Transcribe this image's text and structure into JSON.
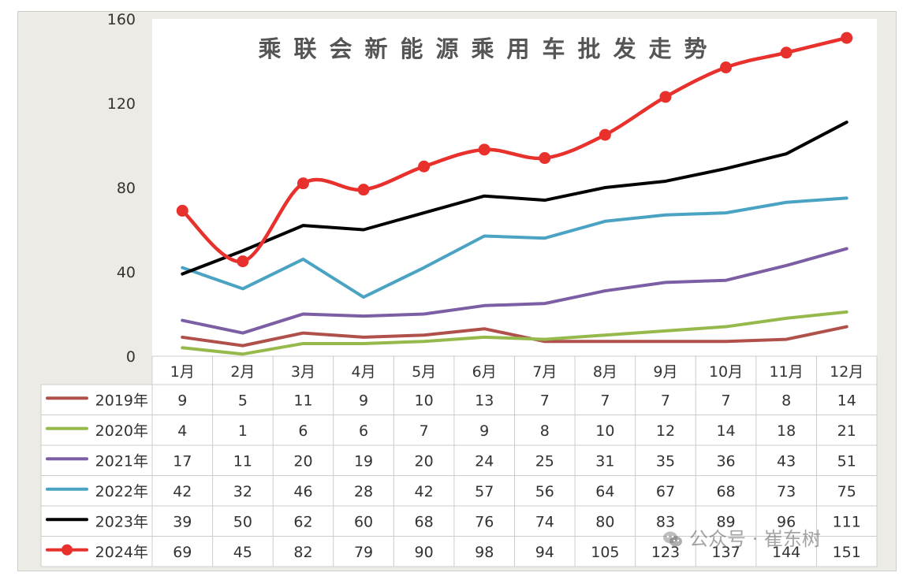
{
  "chart_data": {
    "type": "line",
    "title": "乘联会新能源乘用车批发走势",
    "categories": [
      "1月",
      "2月",
      "3月",
      "4月",
      "5月",
      "6月",
      "7月",
      "8月",
      "9月",
      "10月",
      "11月",
      "12月"
    ],
    "ylim": [
      0,
      160
    ],
    "yticks": [
      "0",
      "40",
      "80",
      "120",
      "160"
    ],
    "grid": false,
    "legend": "data-table-left",
    "series": [
      {
        "name": "2019年",
        "color": "#b0504b",
        "marker": false,
        "values": [
          9,
          5,
          11,
          9,
          10,
          13,
          7,
          7,
          7,
          7,
          8,
          14
        ]
      },
      {
        "name": "2020年",
        "color": "#95b94b",
        "marker": false,
        "values": [
          4,
          1,
          6,
          6,
          7,
          9,
          8,
          10,
          12,
          14,
          18,
          21
        ]
      },
      {
        "name": "2021年",
        "color": "#7b5ea3",
        "marker": false,
        "values": [
          17,
          11,
          20,
          19,
          20,
          24,
          25,
          31,
          35,
          36,
          43,
          51
        ]
      },
      {
        "name": "2022年",
        "color": "#4ba3c3",
        "marker": false,
        "values": [
          42,
          32,
          46,
          28,
          42,
          57,
          56,
          64,
          67,
          68,
          73,
          75
        ]
      },
      {
        "name": "2023年",
        "color": "#000000",
        "marker": false,
        "values": [
          39,
          50,
          62,
          60,
          68,
          76,
          74,
          80,
          83,
          89,
          96,
          111
        ]
      },
      {
        "name": "2024年",
        "color": "#e8312c",
        "marker": true,
        "values": [
          69,
          45,
          82,
          79,
          90,
          98,
          94,
          105,
          123,
          137,
          144,
          151
        ]
      }
    ]
  },
  "watermark": "公众号 · 崔东树"
}
